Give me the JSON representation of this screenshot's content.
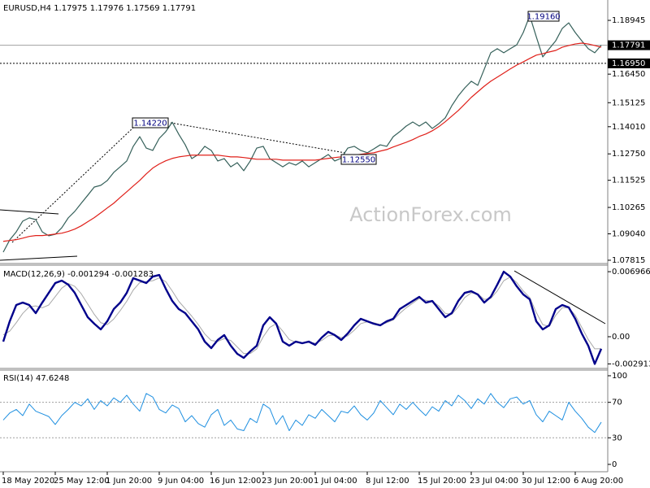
{
  "chart_data": [
    {
      "type": "line",
      "title": "EURUSD,H4  1.17975 1.17976 1.17569 1.17791",
      "ylim": [
        1.077,
        1.1989
      ],
      "yticks": [
        1.18945,
        {
          "value": 1.1645,
          "label": "1.16450"
        },
        1.15125,
        {
          "value": 1.1401,
          "label": "1.14010"
        },
        {
          "value": 1.1275,
          "label": "1.12750"
        },
        1.11525,
        1.10265,
        {
          "value": 1.0904,
          "label": "1.09040"
        },
        1.07815
      ],
      "current_price": {
        "value": 1.17791,
        "label": "1.17791"
      },
      "level": {
        "value": 1.1695,
        "label": "1.16950"
      },
      "annotations": [
        "1.19160",
        "1.14220",
        "1.12550"
      ],
      "watermark": "ActionForex.com",
      "series": [
        {
          "color": "#35605a",
          "width": 1.2,
          "values": [
            1.0819,
            1.0876,
            1.0913,
            1.0963,
            1.0978,
            1.097,
            1.0913,
            1.0895,
            1.0902,
            1.0932,
            1.0978,
            1.1008,
            1.1046,
            1.1083,
            1.1121,
            1.1129,
            1.1151,
            1.1189,
            1.1215,
            1.1242,
            1.131,
            1.1355,
            1.1302,
            1.1291,
            1.1347,
            1.1378,
            1.1422,
            1.1366,
            1.1317,
            1.1253,
            1.1272,
            1.131,
            1.1291,
            1.1242,
            1.1253,
            1.1215,
            1.1234,
            1.1197,
            1.1242,
            1.1302,
            1.131,
            1.1253,
            1.1234,
            1.1215,
            1.1234,
            1.1223,
            1.1242,
            1.1215,
            1.1234,
            1.1253,
            1.1272,
            1.1242,
            1.1255,
            1.1302,
            1.131,
            1.1291,
            1.128,
            1.1298,
            1.1317,
            1.131,
            1.1355,
            1.1378,
            1.1404,
            1.1423,
            1.1404,
            1.1423,
            1.1393,
            1.1415,
            1.1442,
            1.1498,
            1.1544,
            1.1581,
            1.1612,
            1.1593,
            1.1668,
            1.1744,
            1.1763,
            1.1744,
            1.1763,
            1.1781,
            1.1838,
            1.1916,
            1.1819,
            1.1725,
            1.1763,
            1.18,
            1.1857,
            1.1883,
            1.1838,
            1.18,
            1.1763,
            1.1744,
            1.17791
          ]
        },
        {
          "color": "#e0201a",
          "width": 1.2,
          "values": [
            1.0869,
            1.0873,
            1.0877,
            1.0884,
            1.0892,
            1.0896,
            1.0896,
            1.0899,
            1.0903,
            1.0907,
            1.0915,
            1.0926,
            1.0941,
            1.096,
            1.0979,
            1.1001,
            1.1024,
            1.1046,
            1.1073,
            1.1099,
            1.1126,
            1.1152,
            1.1182,
            1.1209,
            1.1228,
            1.1243,
            1.1254,
            1.1261,
            1.1265,
            1.1269,
            1.1269,
            1.1269,
            1.1269,
            1.1269,
            1.1265,
            1.1261,
            1.1261,
            1.1258,
            1.1254,
            1.125,
            1.125,
            1.125,
            1.125,
            1.1246,
            1.1246,
            1.1246,
            1.1246,
            1.1246,
            1.1246,
            1.125,
            1.1254,
            1.1258,
            1.1261,
            1.1265,
            1.1269,
            1.1273,
            1.1277,
            1.128,
            1.1288,
            1.1295,
            1.1307,
            1.1318,
            1.1329,
            1.1341,
            1.1356,
            1.1367,
            1.1382,
            1.1401,
            1.1424,
            1.145,
            1.1476,
            1.1506,
            1.1537,
            1.1563,
            1.1589,
            1.1612,
            1.1631,
            1.165,
            1.1669,
            1.1687,
            1.1702,
            1.1718,
            1.1733,
            1.174,
            1.1748,
            1.1755,
            1.177,
            1.1778,
            1.1785,
            1.1789,
            1.1785,
            1.1778,
            1.177
          ]
        }
      ]
    },
    {
      "type": "line",
      "title": "MACD(12,26,9) -0.001294 -0.001283",
      "ylim": [
        -0.00331,
        0.00758
      ],
      "yticks": [
        0.006966,
        {
          "value": 0,
          "label": "0.00"
        },
        -0.002913
      ],
      "series": [
        {
          "color": "#a9a9a9",
          "width": 1,
          "values": [
            0.0002,
            0.0006,
            0.0015,
            0.0025,
            0.0032,
            0.0033,
            0.0031,
            0.0034,
            0.0043,
            0.0052,
            0.0057,
            0.0054,
            0.0046,
            0.0035,
            0.0024,
            0.0015,
            0.0013,
            0.0019,
            0.0028,
            0.0038,
            0.005,
            0.0058,
            0.0059,
            0.006,
            0.0063,
            0.0059,
            0.0049,
            0.0038,
            0.003,
            0.0022,
            0.0013,
            0.0003,
            -0.0004,
            -0.0005,
            -0.0002,
            -0.0004,
            -0.0011,
            -0.0018,
            -0.0018,
            -0.0013,
            0,
            0.001,
            0.0014,
            0.0006,
            -0.0003,
            -0.0006,
            -0.0007,
            -0.0006,
            -0.0007,
            -0.0004,
            0.0001,
            0.0002,
            -0.0001,
            0.0001,
            0.0007,
            0.0014,
            0.0016,
            0.0015,
            0.0013,
            0.0015,
            0.0018,
            0.0025,
            0.0031,
            0.0036,
            0.0041,
            0.0039,
            0.0038,
            0.0033,
            0.0025,
            0.0024,
            0.0032,
            0.0042,
            0.0047,
            0.0046,
            0.004,
            0.0041,
            0.0049,
            0.006,
            0.0064,
            0.0058,
            0.0049,
            0.0042,
            0.0026,
            0.0013,
            0.0011,
            0.0023,
            0.0031,
            0.0031,
            0.0023,
            0.001,
            -0.0003,
            -0.0013,
            -0.001283
          ]
        },
        {
          "color": "#00008b",
          "width": 2.4,
          "values": [
            -0.000522,
            0.001654,
            0.003396,
            0.003657,
            0.003396,
            0.002525,
            0.003657,
            0.004702,
            0.005747,
            0.006008,
            0.005573,
            0.004702,
            0.003396,
            0.00209,
            0.001393,
            0.000784,
            0.001654,
            0.002961,
            0.003657,
            0.004702,
            0.00627,
            0.006008,
            0.005747,
            0.006444,
            0.006618,
            0.005138,
            0.003831,
            0.002961,
            0.002525,
            0.001654,
            0.000784,
            -0.000522,
            -0.001219,
            -0.000348,
            0.000174,
            -0.000958,
            -0.001829,
            -0.002264,
            -0.001567,
            -0.000958,
            0.001219,
            0.00209,
            0.001393,
            -0.000522,
            -0.000958,
            -0.000522,
            -0.000697,
            -0.000522,
            -0.000871,
            -8.7e-05,
            0.000523,
            0.000174,
            -0.000348,
            0.000348,
            0.001219,
            0.001916,
            0.001654,
            0.001393,
            0.001219,
            0.001654,
            0.001916,
            0.002961,
            0.003396,
            0.003831,
            0.004268,
            0.003657,
            0.003831,
            0.002961,
            0.00209,
            0.002525,
            0.003831,
            0.004702,
            0.004877,
            0.004529,
            0.003657,
            0.004268,
            0.005573,
            0.006966,
            0.006444,
            0.0054,
            0.004529,
            0.004006,
            0.001654,
            0.000784,
            0.001219,
            0.002961,
            0.003396,
            0.003135,
            0.001916,
            0.000348,
            -0.000958,
            -0.002913,
            -0.001294
          ]
        }
      ]
    },
    {
      "type": "line",
      "title": "RSI(14) 47.6248",
      "ylim": [
        -8.3,
        106.4
      ],
      "yticks": [
        100,
        70,
        30,
        0
      ],
      "level_lines": [
        70,
        30
      ],
      "categories": [
        "18 May 2020",
        null,
        null,
        null,
        null,
        null,
        null,
        null,
        "25 May 12:00",
        null,
        null,
        null,
        null,
        null,
        null,
        null,
        "1 Jun 20:00",
        null,
        null,
        null,
        null,
        null,
        null,
        null,
        "9 Jun 04:00",
        null,
        null,
        null,
        null,
        null,
        null,
        null,
        "16 Jun 12:00",
        null,
        null,
        null,
        null,
        null,
        null,
        null,
        "23 Jun 20:00",
        null,
        null,
        null,
        null,
        null,
        null,
        null,
        "1 Jul 04:00",
        null,
        null,
        null,
        null,
        null,
        null,
        null,
        "8 Jul 12:00",
        null,
        null,
        null,
        null,
        null,
        null,
        null,
        "15 Jul 20:00",
        null,
        null,
        null,
        null,
        null,
        null,
        null,
        "23 Jul 04:00",
        null,
        null,
        null,
        null,
        null,
        null,
        null,
        "30 Jul 12:00",
        null,
        null,
        null,
        null,
        null,
        null,
        null,
        "6 Aug 20:00",
        null,
        null,
        null,
        null
      ],
      "series": [
        {
          "color": "#1e8fe0",
          "width": 1,
          "values": [
            50,
            58,
            62,
            55,
            68,
            60,
            57,
            54,
            45,
            55,
            62,
            70,
            66,
            74,
            62,
            72,
            66,
            75,
            70,
            78,
            68,
            60,
            80,
            76,
            62,
            58,
            67,
            63,
            48,
            55,
            46,
            42,
            56,
            62,
            44,
            50,
            40,
            38,
            52,
            47,
            68,
            63,
            45,
            55,
            38,
            50,
            44,
            56,
            52,
            62,
            55,
            48,
            60,
            58,
            66,
            56,
            50,
            58,
            72,
            64,
            56,
            68,
            62,
            70,
            62,
            55,
            65,
            60,
            72,
            66,
            78,
            72,
            63,
            74,
            68,
            80,
            70,
            64,
            74,
            76,
            68,
            72,
            56,
            48,
            60,
            55,
            50,
            70,
            60,
            52,
            42,
            36,
            47.6248
          ]
        }
      ]
    }
  ]
}
